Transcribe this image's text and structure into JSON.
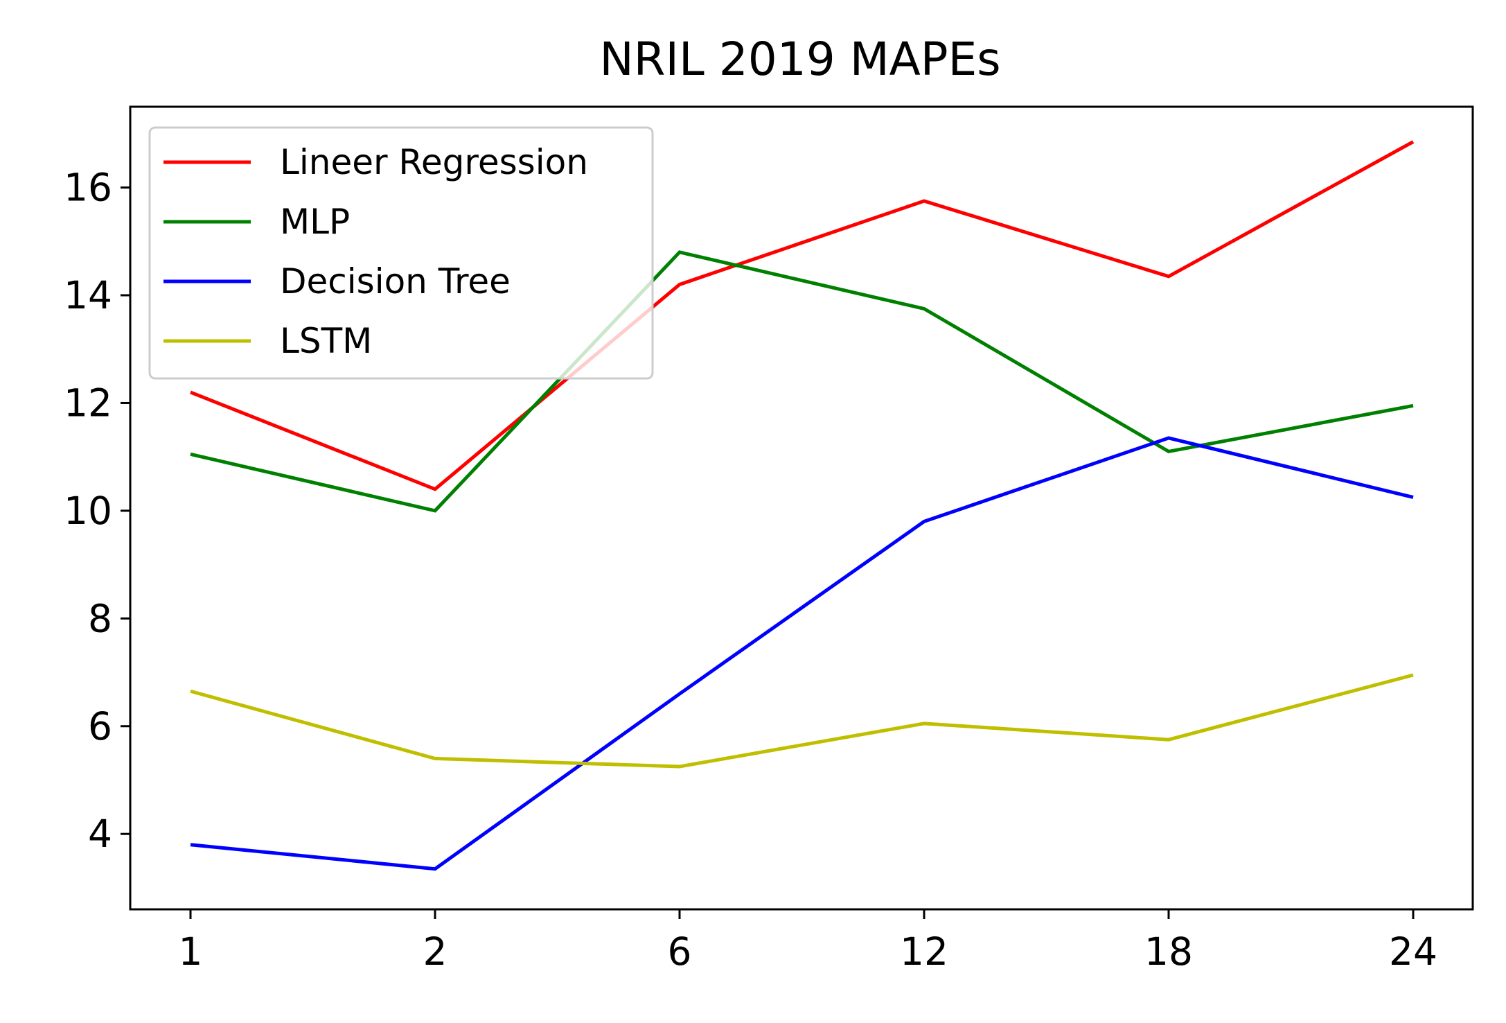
{
  "chart_data": {
    "type": "line",
    "title": "NRIL  2019 MAPEs",
    "xlabel": "",
    "ylabel": "",
    "categories": [
      "1",
      "2",
      "6",
      "12",
      "18",
      "24"
    ],
    "ylim": [
      2.6,
      17.5
    ],
    "yticks": [
      4,
      6,
      8,
      10,
      12,
      14,
      16
    ],
    "grid": false,
    "legend_position": "upper-left",
    "series": [
      {
        "name": "Lineer Regression",
        "color": "#ff0000",
        "values": [
          12.2,
          10.4,
          14.2,
          15.75,
          14.35,
          16.85
        ]
      },
      {
        "name": "MLP",
        "color": "#008000",
        "values": [
          11.05,
          10.0,
          14.8,
          13.75,
          11.1,
          11.95
        ]
      },
      {
        "name": "Decision Tree",
        "color": "#0000ff",
        "values": [
          3.8,
          3.35,
          6.6,
          9.8,
          11.35,
          10.25
        ]
      },
      {
        "name": "LSTM",
        "color": "#bfbf00",
        "values": [
          6.65,
          5.4,
          5.25,
          6.05,
          5.75,
          6.95
        ]
      }
    ]
  }
}
